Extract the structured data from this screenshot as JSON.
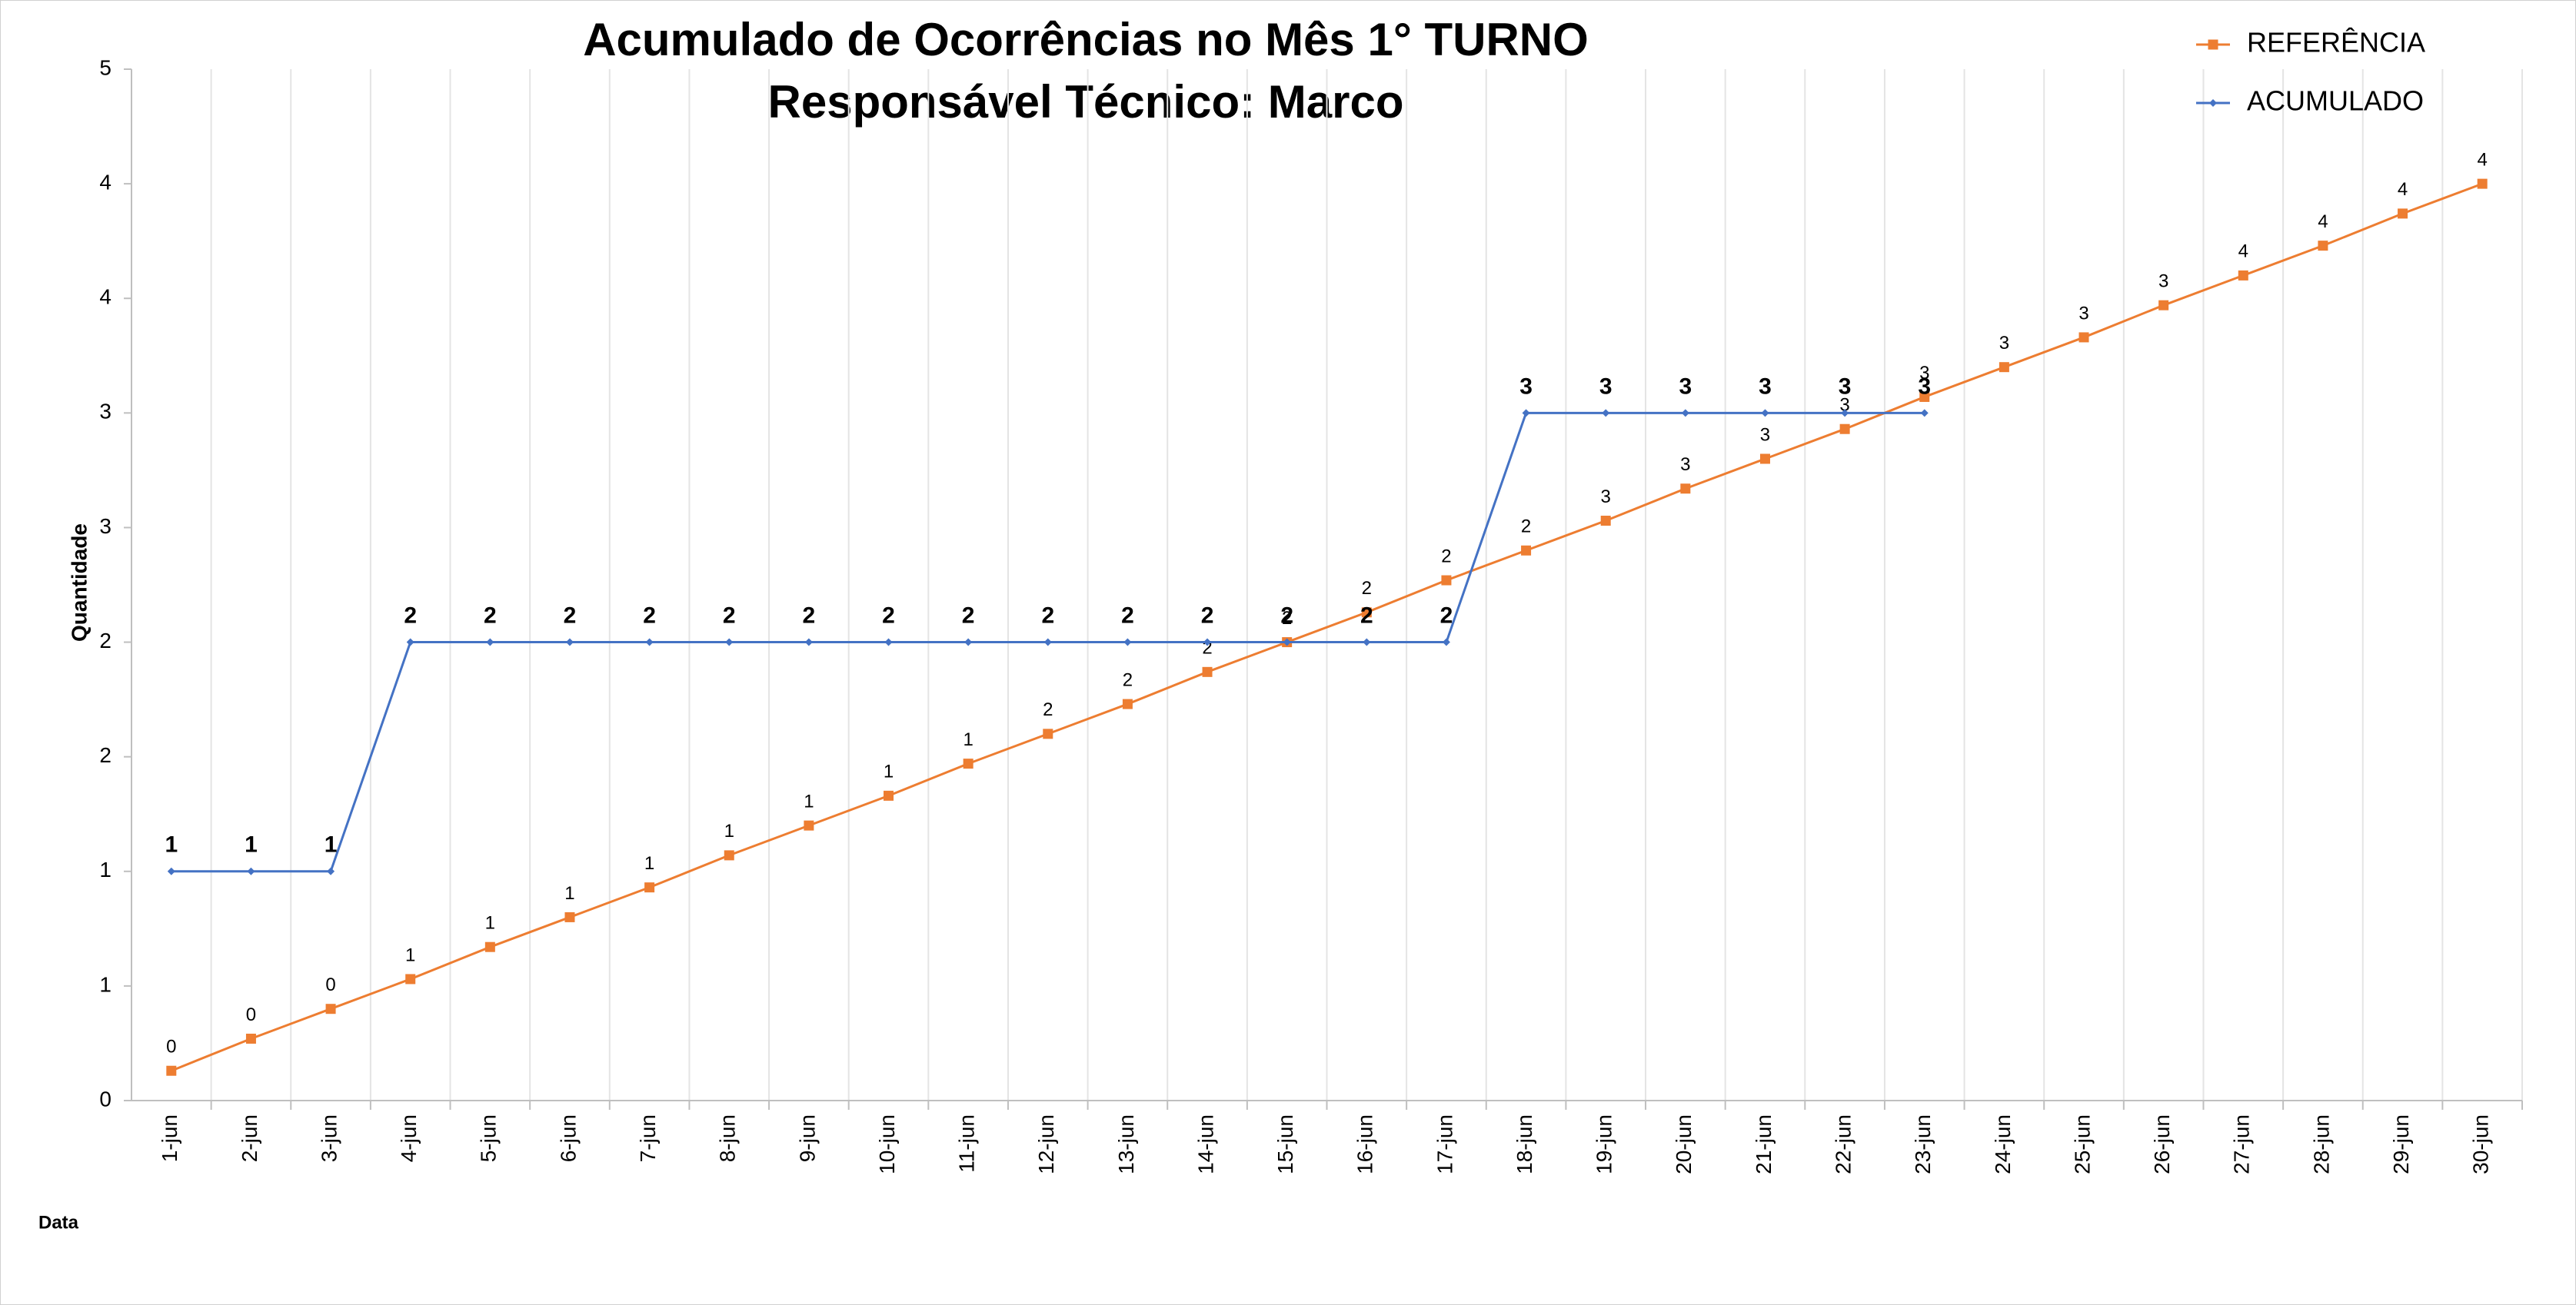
{
  "chart_data": {
    "type": "line",
    "title": "Acumulado de Ocorrências no Mês  1° TURNO",
    "subtitle": "Responsável Técnico:   Marco",
    "y_label": "Quantidade",
    "x_label": "Data",
    "categories": [
      "1-jun",
      "2-jun",
      "3-jun",
      "4-jun",
      "5-jun",
      "6-jun",
      "7-jun",
      "8-jun",
      "9-jun",
      "10-jun",
      "11-jun",
      "12-jun",
      "13-jun",
      "14-jun",
      "15-jun",
      "16-jun",
      "17-jun",
      "18-jun",
      "19-jun",
      "20-jun",
      "21-jun",
      "22-jun",
      "23-jun",
      "24-jun",
      "25-jun",
      "26-jun",
      "27-jun",
      "28-jun",
      "29-jun",
      "30-jun"
    ],
    "series": [
      {
        "name": "REFERÊNCIA",
        "color": "#ed7d31",
        "marker": "square",
        "values": [
          0.13,
          0.27,
          0.4,
          0.53,
          0.67,
          0.8,
          0.93,
          1.07,
          1.2,
          1.33,
          1.47,
          1.6,
          1.73,
          1.87,
          2,
          2.13,
          2.27,
          2.4,
          2.53,
          2.67,
          2.8,
          2.93,
          3.07,
          3.2,
          3.33,
          3.47,
          3.6,
          3.73,
          3.87,
          4
        ],
        "value_labels": [
          "0",
          "0",
          "0",
          "1",
          "1",
          "1",
          "1",
          "1",
          "1",
          "1",
          "1",
          "2",
          "2",
          "2",
          "2",
          "2",
          "2",
          "2",
          "3",
          "3",
          "3",
          "3",
          "3",
          "3",
          "3",
          "3",
          "4",
          "4",
          "4",
          "4"
        ]
      },
      {
        "name": "ACUMULADO",
        "color": "#4472c4",
        "marker": "diamond",
        "values": [
          1,
          1,
          1,
          2,
          2,
          2,
          2,
          2,
          2,
          2,
          2,
          2,
          2,
          2,
          2,
          2,
          2,
          3,
          3,
          3,
          3,
          3,
          3,
          null,
          null,
          null,
          null,
          null,
          null,
          null
        ]
      }
    ],
    "ylim": [
      0,
      4.5
    ],
    "yticks": [
      0,
      {
        "value": 0.5,
        "label": "1"
      },
      1,
      {
        "value": 1.5,
        "label": "2"
      },
      2,
      {
        "value": 2.5,
        "label": "3"
      },
      3,
      {
        "value": 3.5,
        "label": "4"
      },
      4,
      {
        "value": 4.5,
        "label": "5"
      }
    ],
    "grid": true,
    "legend": "top-right"
  }
}
